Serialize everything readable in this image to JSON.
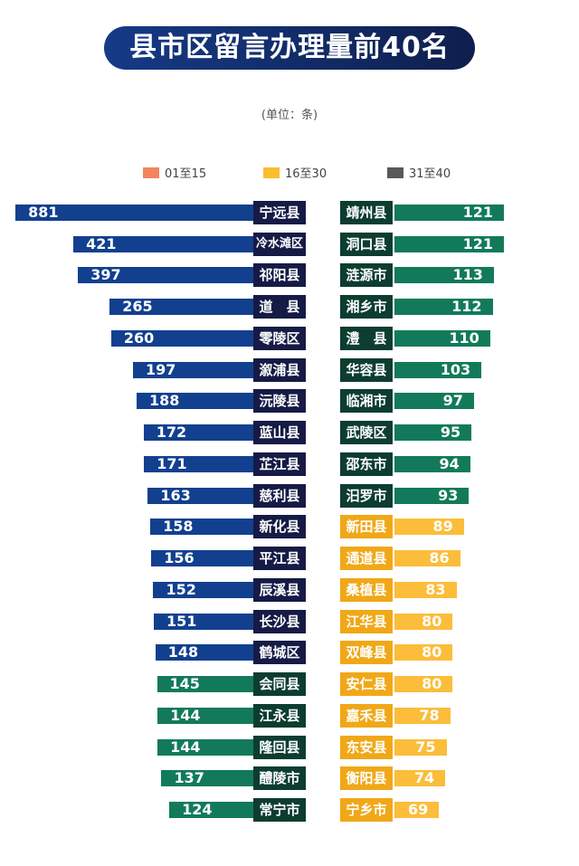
{
  "title": "县市区留言办理量前40名",
  "unit": "(单位：条)",
  "legend": [
    {
      "label": "01至15",
      "color": "#f4845f"
    },
    {
      "label": "16至30",
      "color": "#fbbd2e"
    },
    {
      "label": "31至40",
      "color": "#595959"
    }
  ],
  "colors": {
    "blue_bar": "#12408f",
    "navy_label": "#151b45",
    "green_bar": "#127a5a",
    "dark_green_label": "#0c3d30",
    "yellow_bar": "#fbbd3a",
    "yellow_label": "#f0a818"
  },
  "chart_data": {
    "type": "bar",
    "title": "县市区留言办理量前40名",
    "unit": "(单位：条)",
    "left": [
      {
        "name": "宁远县",
        "value": 881
      },
      {
        "name": "冷水滩区",
        "value": 421
      },
      {
        "name": "祁阳县",
        "value": 397
      },
      {
        "name": "道　县",
        "value": 265
      },
      {
        "name": "零陵区",
        "value": 260
      },
      {
        "name": "溆浦县",
        "value": 197
      },
      {
        "name": "沅陵县",
        "value": 188
      },
      {
        "name": "蓝山县",
        "value": 172
      },
      {
        "name": "芷江县",
        "value": 171
      },
      {
        "name": "慈利县",
        "value": 163
      },
      {
        "name": "新化县",
        "value": 158
      },
      {
        "name": "平江县",
        "value": 156
      },
      {
        "name": "辰溪县",
        "value": 152
      },
      {
        "name": "长沙县",
        "value": 151
      },
      {
        "name": "鹤城区",
        "value": 148
      },
      {
        "name": "会同县",
        "value": 145
      },
      {
        "name": "江永县",
        "value": 144
      },
      {
        "name": "隆回县",
        "value": 144
      },
      {
        "name": "醴陵市",
        "value": 137
      },
      {
        "name": "常宁市",
        "value": 124
      }
    ],
    "right": [
      {
        "name": "靖州县",
        "value": 121
      },
      {
        "name": "洞口县",
        "value": 121
      },
      {
        "name": "涟源市",
        "value": 113
      },
      {
        "name": "湘乡市",
        "value": 112
      },
      {
        "name": "澧　县",
        "value": 110
      },
      {
        "name": "华容县",
        "value": 103
      },
      {
        "name": "临湘市",
        "value": 97
      },
      {
        "name": "武陵区",
        "value": 95
      },
      {
        "name": "邵东市",
        "value": 94
      },
      {
        "name": "汨罗市",
        "value": 93
      },
      {
        "name": "新田县",
        "value": 89
      },
      {
        "name": "通道县",
        "value": 86
      },
      {
        "name": "桑植县",
        "value": 83
      },
      {
        "name": "江华县",
        "value": 80
      },
      {
        "name": "双峰县",
        "value": 80
      },
      {
        "name": "安仁县",
        "value": 80
      },
      {
        "name": "嘉禾县",
        "value": 78
      },
      {
        "name": "东安县",
        "value": 75
      },
      {
        "name": "衡阳县",
        "value": 74
      },
      {
        "name": "宁乡市",
        "value": 69
      }
    ]
  }
}
